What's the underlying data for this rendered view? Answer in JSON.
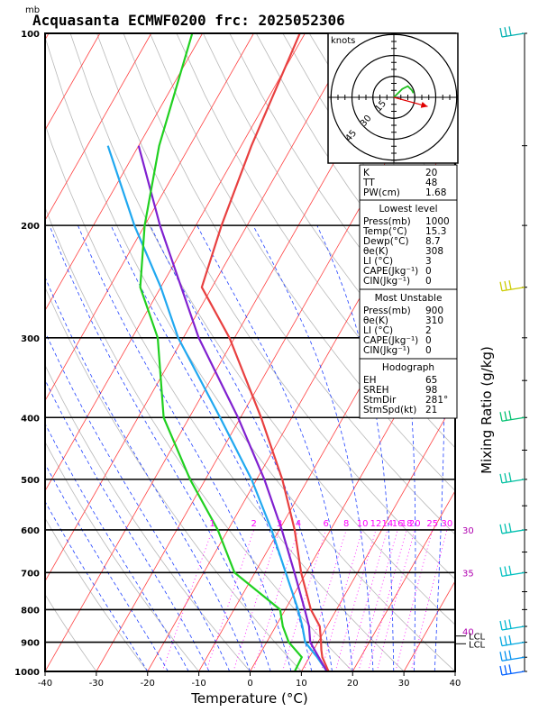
{
  "header": {
    "pressure_unit": "mb",
    "title": "Acquasanta ECMWF0200  frc: 2025052306"
  },
  "chart_data": {
    "type": "skew-t log-p sounding",
    "xlabel": "Temperature (°C)",
    "ylabel_right": "Mixing Ratio (g/kg)",
    "x_ticks": [
      -40,
      -30,
      -20,
      -10,
      0,
      10,
      20,
      30,
      40
    ],
    "y_ticks": [
      100,
      200,
      300,
      400,
      500,
      600,
      700,
      800,
      900,
      1000
    ],
    "xlim": [
      -40,
      40
    ],
    "ylim": [
      1000,
      100
    ],
    "mixing_ratio_labels": [
      "1",
      "2",
      "3",
      "4",
      "6",
      "8",
      "10",
      "12",
      "14",
      "16",
      "18",
      "20",
      "25",
      "30"
    ],
    "temperature_profile": [
      {
        "p": 1000,
        "t": 15.3
      },
      {
        "p": 950,
        "t": 12.5
      },
      {
        "p": 925,
        "t": 11.5
      },
      {
        "p": 900,
        "t": 10.6
      },
      {
        "p": 850,
        "t": 8.6
      },
      {
        "p": 800,
        "t": 5.0
      },
      {
        "p": 700,
        "t": -1.0
      },
      {
        "p": 600,
        "t": -7.0
      },
      {
        "p": 500,
        "t": -15.0
      },
      {
        "p": 400,
        "t": -26.0
      },
      {
        "p": 300,
        "t": -41.0
      },
      {
        "p": 250,
        "t": -52.0
      },
      {
        "p": 200,
        "t": -55.0
      },
      {
        "p": 150,
        "t": -58.0
      },
      {
        "p": 100,
        "t": -61.0
      }
    ],
    "dewpoint_profile": [
      {
        "p": 1000,
        "t": 8.7
      },
      {
        "p": 950,
        "t": 8.5
      },
      {
        "p": 900,
        "t": 4.3
      },
      {
        "p": 850,
        "t": 1.4
      },
      {
        "p": 800,
        "t": -1.0
      },
      {
        "p": 700,
        "t": -14.0
      },
      {
        "p": 600,
        "t": -22.0
      },
      {
        "p": 500,
        "t": -33.0
      },
      {
        "p": 400,
        "t": -45.0
      },
      {
        "p": 300,
        "t": -55.0
      },
      {
        "p": 250,
        "t": -64.0
      },
      {
        "p": 200,
        "t": -70.0
      },
      {
        "p": 150,
        "t": -76.0
      },
      {
        "p": 100,
        "t": -82.0
      }
    ],
    "parcel_profile": [
      {
        "p": 1000,
        "t": 15.0
      },
      {
        "p": 950,
        "t": 11.5
      },
      {
        "p": 900,
        "t": 7.5
      },
      {
        "p": 850,
        "t": 5.2
      },
      {
        "p": 800,
        "t": 2.5
      },
      {
        "p": 700,
        "t": -4.0
      },
      {
        "p": 600,
        "t": -11.5
      },
      {
        "p": 500,
        "t": -21.0
      },
      {
        "p": 400,
        "t": -34.0
      },
      {
        "p": 300,
        "t": -51.0
      },
      {
        "p": 250,
        "t": -60.0
      },
      {
        "p": 200,
        "t": -72.0
      },
      {
        "p": 150,
        "t": -86.0
      }
    ],
    "violet_profile": [
      {
        "p": 1000,
        "t": 15.0
      },
      {
        "p": 950,
        "t": 11.8
      },
      {
        "p": 900,
        "t": 8.5
      },
      {
        "p": 850,
        "t": 6.5
      },
      {
        "p": 800,
        "t": 3.8
      },
      {
        "p": 700,
        "t": -2.3
      },
      {
        "p": 600,
        "t": -9.5
      },
      {
        "p": 500,
        "t": -18.5
      },
      {
        "p": 400,
        "t": -30.5
      },
      {
        "p": 300,
        "t": -47.0
      },
      {
        "p": 250,
        "t": -56.0
      },
      {
        "p": 200,
        "t": -67.0
      },
      {
        "p": 150,
        "t": -80.0
      }
    ],
    "lcl_labels": [
      {
        "p": 880,
        "text": "LCL"
      },
      {
        "p": 905,
        "text": "LCL"
      }
    ],
    "side_labels": [
      {
        "p": 600,
        "text": "30"
      },
      {
        "p": 700,
        "text": "35"
      },
      {
        "p": 865,
        "text": "40"
      }
    ],
    "hodograph": {
      "unit": "knots",
      "ring_labels": [
        "15",
        "30",
        "45"
      ],
      "rings_kt": [
        15,
        30,
        45
      ],
      "trace": [
        [
          0,
          0
        ],
        [
          6,
          6
        ],
        [
          10,
          8
        ],
        [
          13,
          5
        ],
        [
          14,
          3
        ]
      ],
      "storm_motion_arrow": [
        11,
        -3
      ]
    },
    "wind_barbs": [
      {
        "p": 100,
        "type": "pennant",
        "color": "#00b0b0"
      },
      {
        "p": 250,
        "type": "barb",
        "color": "#cccc00"
      },
      {
        "p": 400,
        "type": "barb",
        "color": "#00c070"
      },
      {
        "p": 500,
        "type": "barb",
        "color": "#00c0a0"
      },
      {
        "p": 600,
        "type": "barb",
        "color": "#00c0b0"
      },
      {
        "p": 700,
        "type": "barb",
        "color": "#00c0c0"
      },
      {
        "p": 850,
        "type": "barb",
        "color": "#00b8d0"
      },
      {
        "p": 900,
        "type": "barb",
        "color": "#00a8e0"
      },
      {
        "p": 950,
        "type": "barb",
        "color": "#0090f0"
      },
      {
        "p": 1000,
        "type": "barb",
        "color": "#0060ff"
      }
    ]
  },
  "indices": [
    {
      "label": "K",
      "value": "20"
    },
    {
      "label": "TT",
      "value": "48"
    },
    {
      "label": "PW(cm)",
      "value": "1.68"
    }
  ],
  "lowest_level": {
    "heading": "Lowest level",
    "rows": [
      {
        "label": "Press(mb)",
        "value": "1000"
      },
      {
        "label": "Temp(°C)",
        "value": "15.3"
      },
      {
        "label": "Dewp(°C)",
        "value": "8.7"
      },
      {
        "label": "θe(K)",
        "value": "308"
      },
      {
        "label": "LI (°C)",
        "value": "3"
      },
      {
        "label": "CAPE(Jkg⁻¹)",
        "value": "0"
      },
      {
        "label": "CIN(Jkg⁻¹)",
        "value": "0"
      }
    ]
  },
  "most_unstable": {
    "heading": "Most Unstable",
    "rows": [
      {
        "label": "Press(mb)",
        "value": "900"
      },
      {
        "label": "θe(K)",
        "value": "310"
      },
      {
        "label": "LI (°C)",
        "value": "2"
      },
      {
        "label": "CAPE(Jkg⁻¹)",
        "value": "0"
      },
      {
        "label": "CIN(Jkg⁻¹)",
        "value": "0"
      }
    ]
  },
  "hodograph_box": {
    "heading": "Hodograph",
    "rows": [
      {
        "label": "EH",
        "value": "65"
      },
      {
        "label": "SREH",
        "value": "98"
      },
      {
        "label": "StmDir",
        "value": "281°"
      },
      {
        "label": "StmSpd(kt)",
        "value": "21"
      }
    ]
  },
  "colors": {
    "isotherm": "#ff4040",
    "dry_adiabat": "#b8b8b8",
    "moist_adiabat": "#2040ff",
    "mixing_ratio": "#ff00ff",
    "temperature": "#e84040",
    "dewpoint": "#20d020",
    "parcel": "#20a8f0",
    "violet": "#8020d0",
    "label_purple": "#b000b0"
  }
}
